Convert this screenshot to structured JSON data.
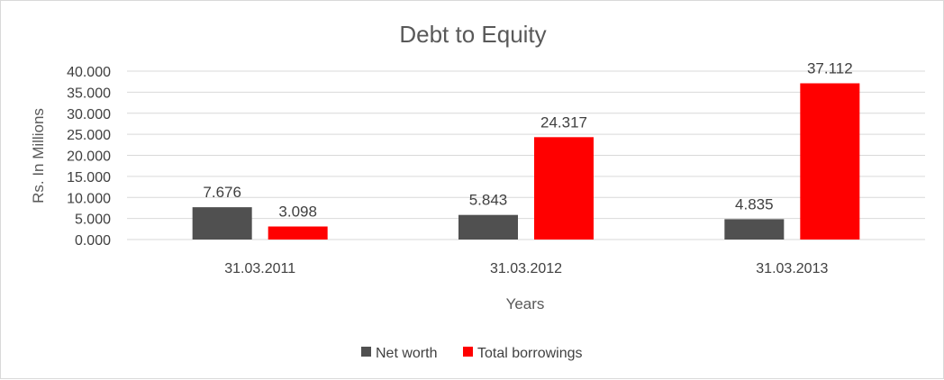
{
  "chart_data": {
    "type": "bar",
    "title": "Debt to Equity",
    "xlabel": "Years",
    "ylabel": "Rs. In Millions",
    "categories": [
      "31.03.2011",
      "31.03.2012",
      "31.03.2013"
    ],
    "series": [
      {
        "name": "Net worth",
        "color": "#505050",
        "values": [
          7.676,
          5.843,
          4.835
        ],
        "labels": [
          "7.676",
          "5.843",
          "4.835"
        ]
      },
      {
        "name": "Total borrowings",
        "color": "#ff0000",
        "values": [
          3.098,
          24.317,
          37.112
        ],
        "labels": [
          "3.098",
          "24.317",
          "37.112"
        ]
      }
    ],
    "ylim": [
      0,
      40
    ],
    "yticks": [
      "0.000",
      "5.000",
      "10.000",
      "15.000",
      "20.000",
      "25.000",
      "30.000",
      "35.000",
      "40.000"
    ],
    "ytick_values": [
      0,
      5,
      10,
      15,
      20,
      25,
      30,
      35,
      40
    ],
    "grid": true,
    "legend": "bottom"
  }
}
